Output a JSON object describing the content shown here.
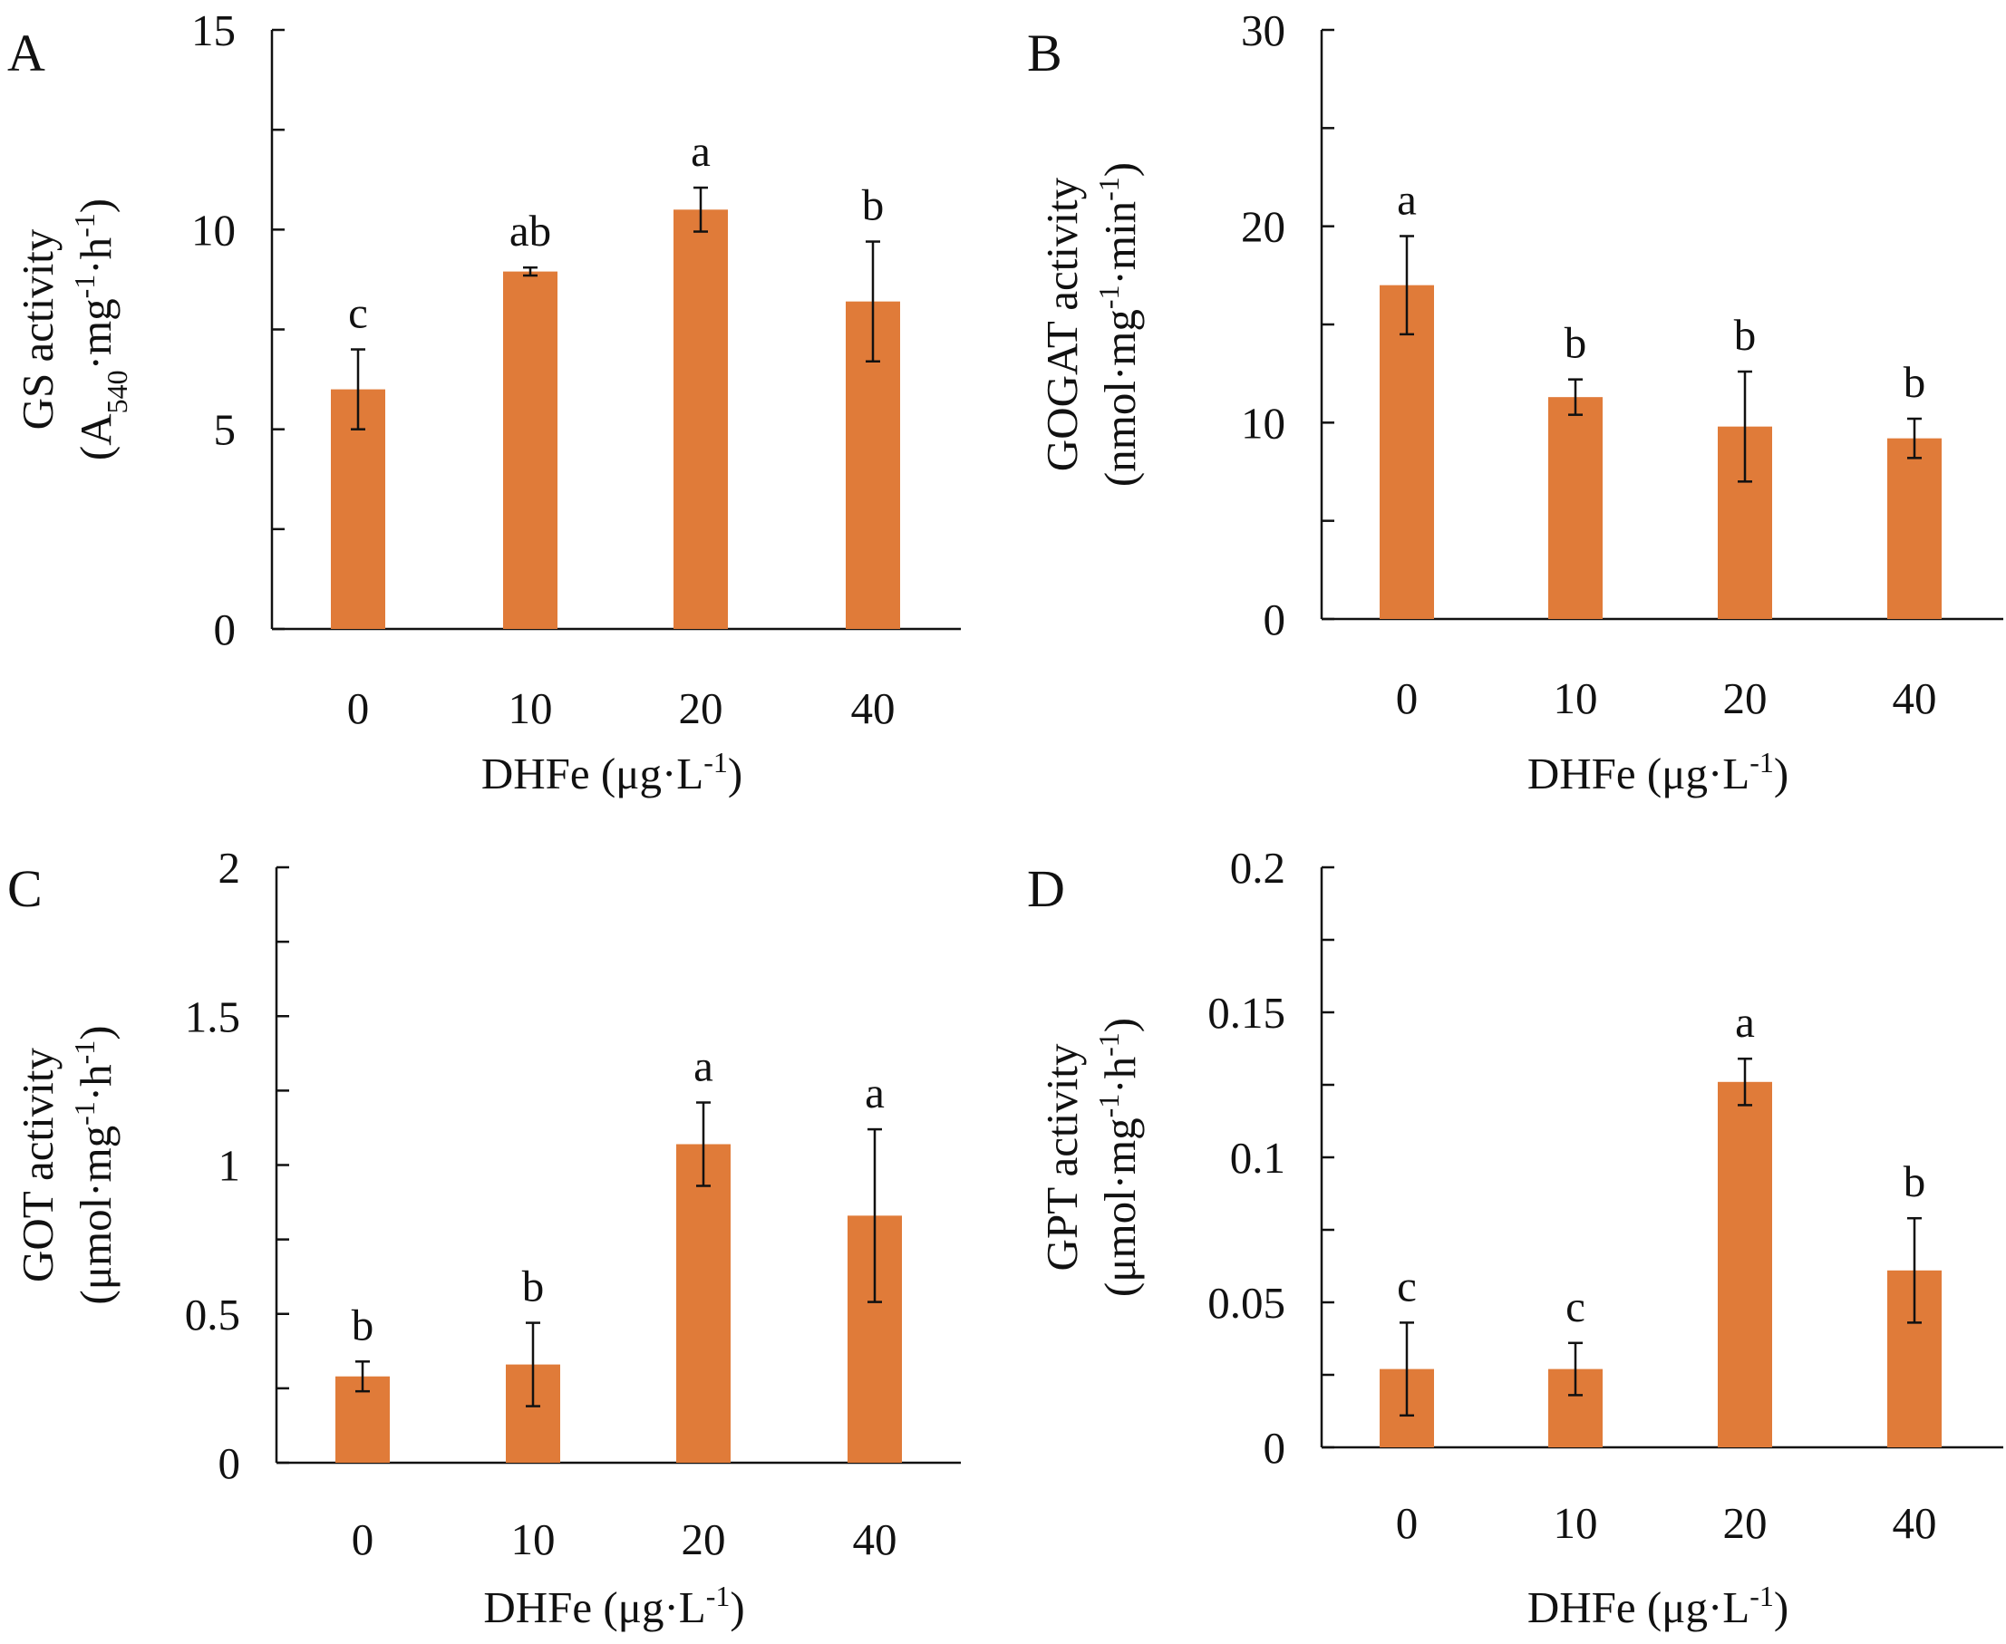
{
  "chart_data": [
    {
      "panel": "A",
      "type": "bar",
      "categories": [
        "0",
        "10",
        "20",
        "40"
      ],
      "values": [
        6.0,
        8.95,
        10.5,
        8.2
      ],
      "errors": [
        1.0,
        0.1,
        0.55,
        1.5
      ],
      "significance": [
        "c",
        "ab",
        "a",
        "b"
      ],
      "ylim": [
        0,
        15
      ],
      "ticks": [
        "0",
        "5",
        "10",
        "15"
      ],
      "ylabel_line1": "GS activity",
      "ylabel_line2": "(A540·mg-1·h-1)",
      "xlabel": "DHFe (μg·L-1)",
      "color": "#E07B39"
    },
    {
      "panel": "B",
      "type": "bar",
      "categories": [
        "0",
        "10",
        "20",
        "40"
      ],
      "values": [
        17.0,
        11.3,
        9.8,
        9.2
      ],
      "errors": [
        2.5,
        0.9,
        2.8,
        1.0
      ],
      "significance": [
        "a",
        "b",
        "b",
        "b"
      ],
      "ylim": [
        0,
        30
      ],
      "ticks": [
        "0",
        "10",
        "20",
        "30"
      ],
      "ylabel_line1": "GOGAT activity",
      "ylabel_line2": "(nmol·mg-1·min-1)",
      "xlabel": "DHFe (μg·L-1)",
      "color": "#E07B39"
    },
    {
      "panel": "C",
      "type": "bar",
      "categories": [
        "0",
        "10",
        "20",
        "40"
      ],
      "values": [
        0.29,
        0.33,
        1.07,
        0.83
      ],
      "errors": [
        0.05,
        0.14,
        0.14,
        0.29
      ],
      "significance": [
        "b",
        "b",
        "a",
        "a"
      ],
      "ylim": [
        0,
        2
      ],
      "ticks": [
        "0",
        "0.5",
        "1",
        "1.5",
        "2"
      ],
      "ylabel_line1": "GOT activity",
      "ylabel_line2": "(μmol·mg-1·h-1)",
      "xlabel": "DHFe (μg·L-1)",
      "color": "#E07B39"
    },
    {
      "panel": "D",
      "type": "bar",
      "categories": [
        "0",
        "10",
        "20",
        "40"
      ],
      "values": [
        0.027,
        0.027,
        0.126,
        0.061
      ],
      "errors": [
        0.016,
        0.009,
        0.008,
        0.018
      ],
      "significance": [
        "c",
        "c",
        "a",
        "b"
      ],
      "ylim": [
        0,
        0.2
      ],
      "ticks": [
        "0",
        "0.05",
        "0.1",
        "0.15",
        "0.2"
      ],
      "ylabel_line1": "GPT activity",
      "ylabel_line2": "(μmol·mg-1·h-1)",
      "xlabel": "DHFe (μg·L-1)",
      "color": "#E07B39"
    }
  ]
}
